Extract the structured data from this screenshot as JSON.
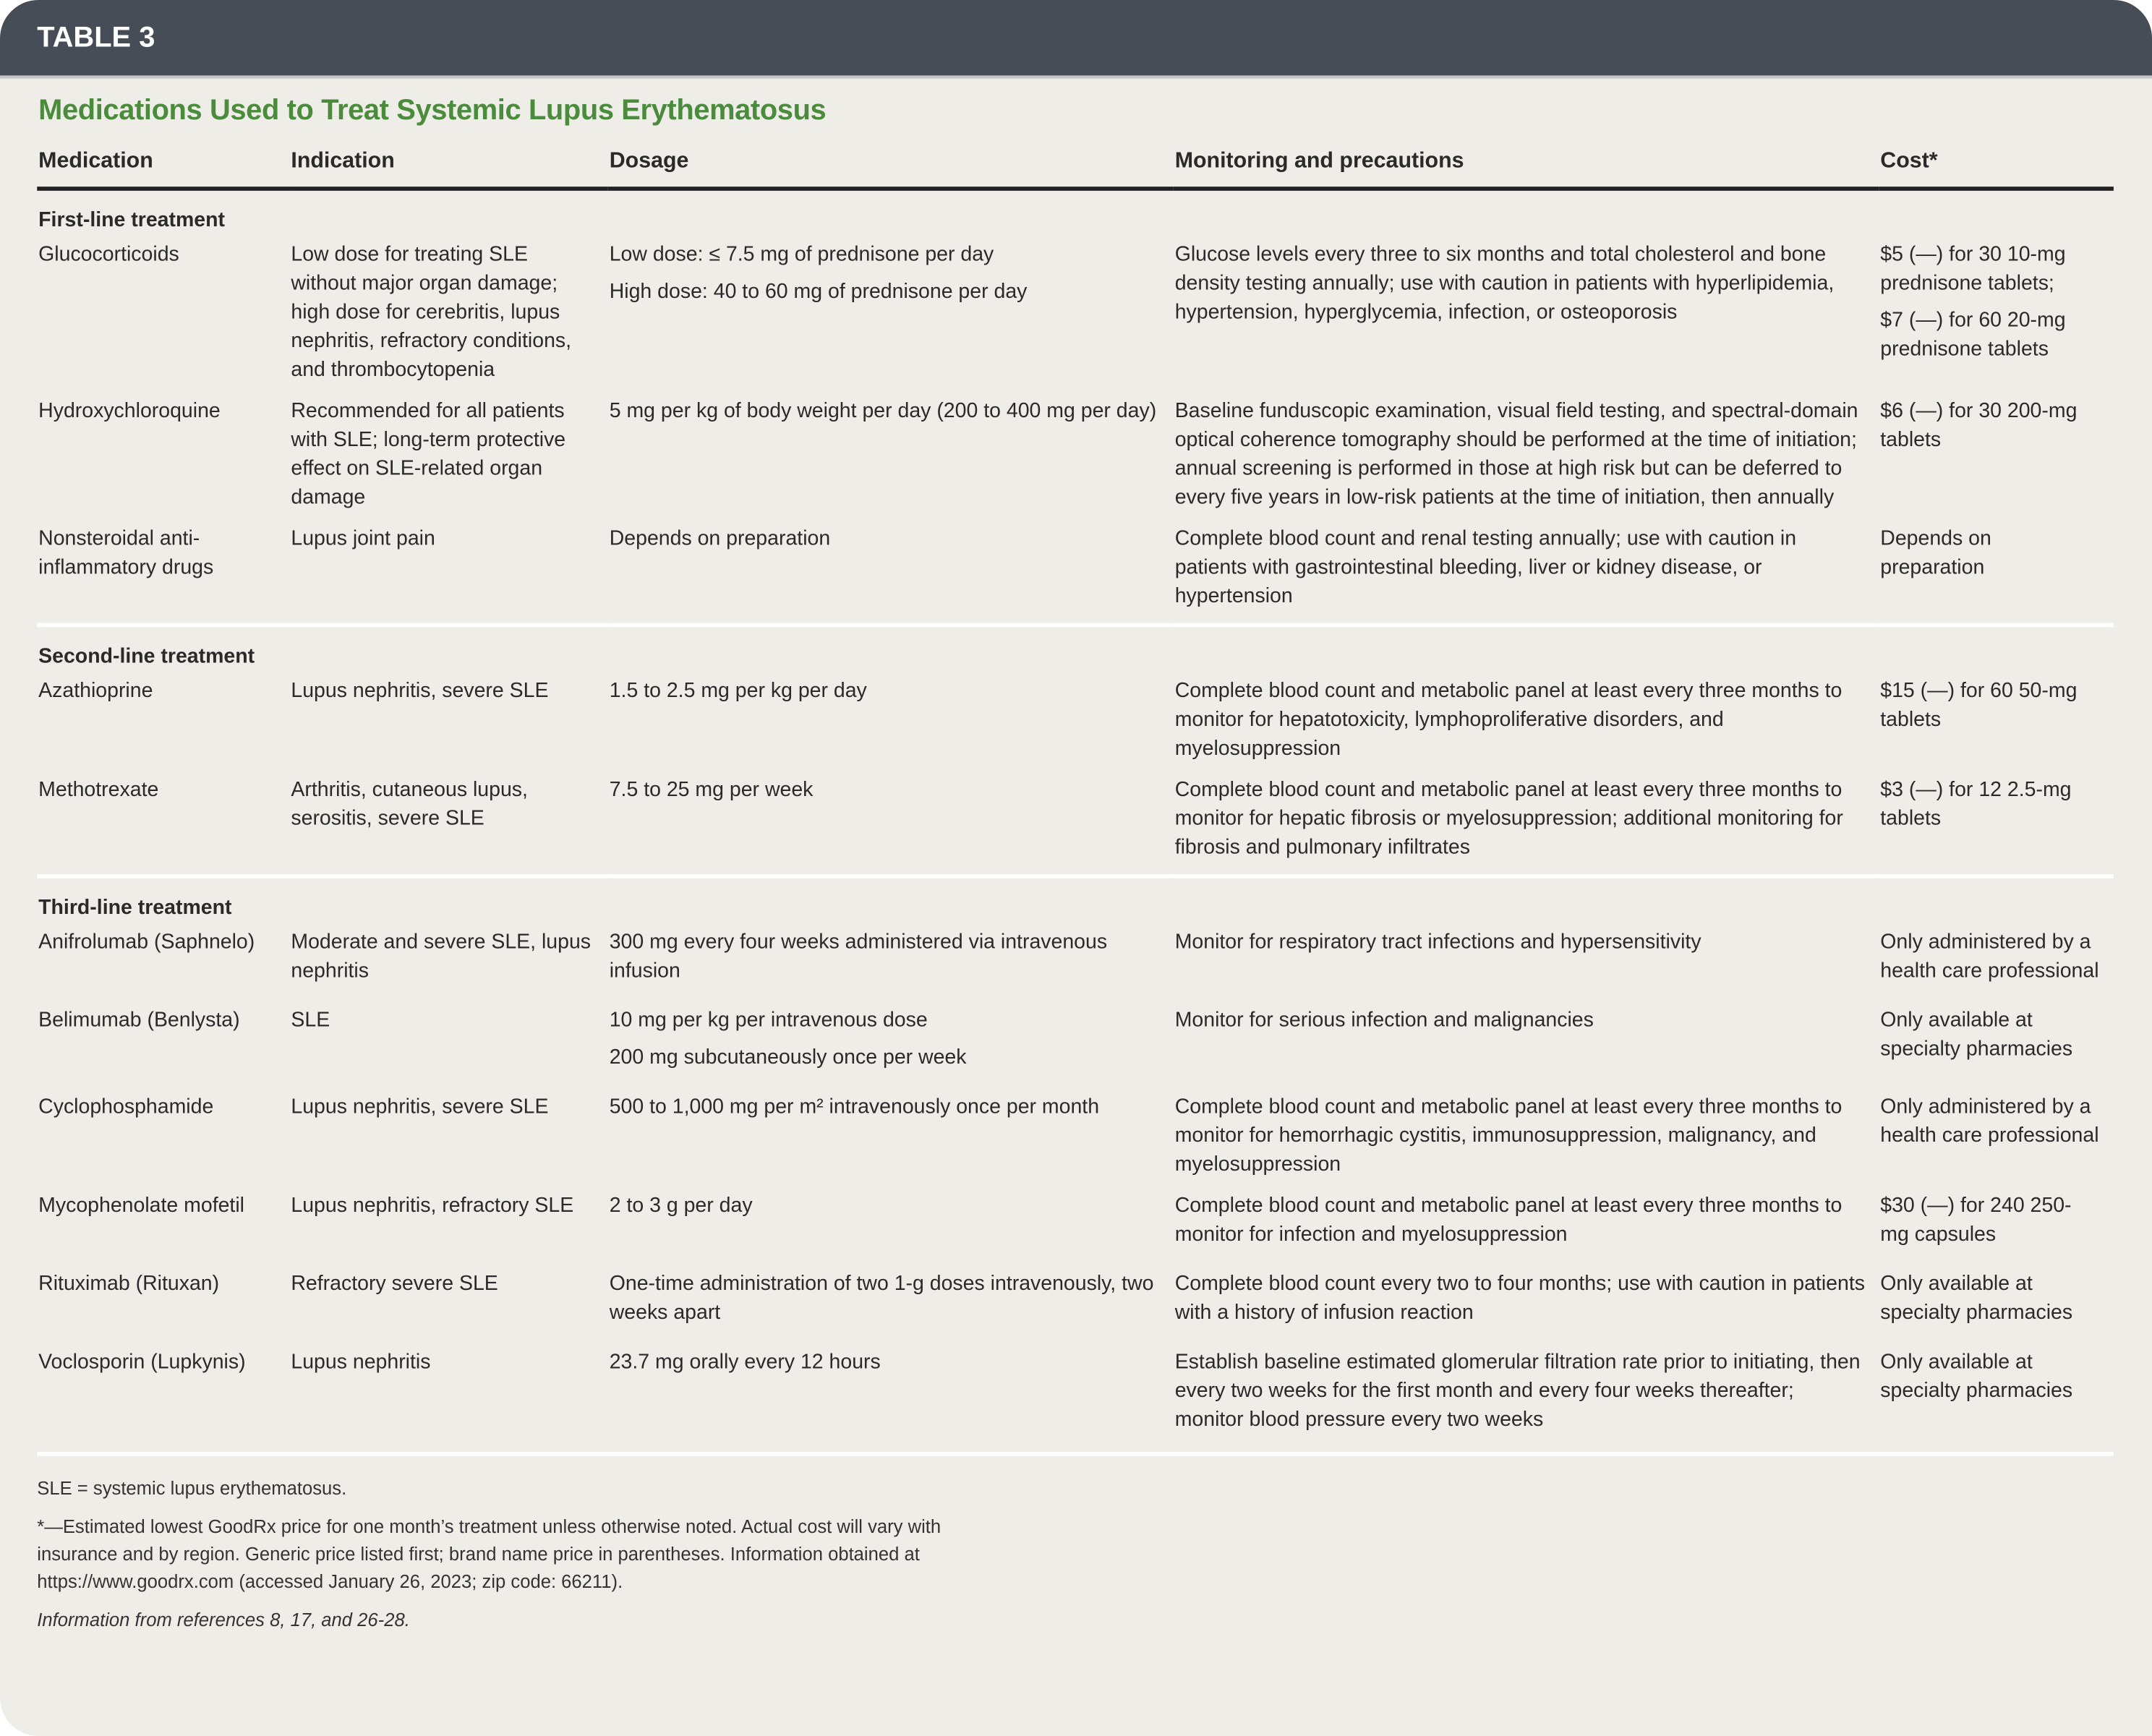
{
  "header": {
    "label": "TABLE 3",
    "title": "Medications Used to Treat Systemic Lupus Erythematosus"
  },
  "colors": {
    "band": "#474d57",
    "title": "#4a8c3c",
    "background": "#efede8"
  },
  "columns": [
    "Medication",
    "Indication",
    "Dosage",
    "Monitoring and precautions",
    "Cost*"
  ],
  "sections": [
    {
      "label": "First-line treatment",
      "rows": [
        {
          "medication": "Glucocorticoids",
          "indication": "Low dose for treating SLE without major organ damage; high dose for cerebritis, lupus nephritis, refractory conditions, and thrombocytopenia",
          "dosage": [
            "Low dose: ≤ 7.5 mg of prednisone per day",
            "High dose: 40 to 60 mg of prednisone per day"
          ],
          "monitoring": "Glucose levels every three to six months and total cholesterol and bone density testing annually; use with caution in patients with hyperlipidemia, hypertension, hyperglycemia, infection, or osteoporosis",
          "cost": [
            "$5 (—) for 30 10-mg prednisone tablets;",
            "$7 (—) for 60 20-mg prednisone tablets"
          ]
        },
        {
          "medication": "Hydroxychloroquine",
          "indication": "Recommended for all patients with SLE; long-term protective effect on SLE-related organ damage",
          "dosage": [
            "5 mg per kg of body weight per day (200 to 400 mg per day)"
          ],
          "monitoring": "Baseline funduscopic examination, visual field testing, and spectral-domain optical coherence tomography should be performed at the time of initiation; annual screening is performed in those at high risk but can be deferred to every five years in low-risk patients at the time of initiation, then annually",
          "cost": [
            "$6 (—) for 30 200-mg tablets"
          ]
        },
        {
          "medication": "Nonsteroidal anti-inflammatory drugs",
          "indication": "Lupus joint pain",
          "dosage": [
            "Depends on preparation"
          ],
          "monitoring": "Complete blood count and renal testing annually; use with caution in patients with gastrointestinal bleeding, liver or kidney disease, or hypertension",
          "cost": [
            "Depends on preparation"
          ]
        }
      ]
    },
    {
      "label": "Second-line treatment",
      "rows": [
        {
          "medication": "Azathioprine",
          "indication": "Lupus nephritis, severe SLE",
          "dosage": [
            "1.5 to 2.5 mg per kg per day"
          ],
          "monitoring": "Complete blood count and metabolic panel at least every three months to monitor for hepatotoxicity, lymphoproliferative disorders, and myelosuppression",
          "cost": [
            "$15 (—) for 60 50-mg tablets"
          ]
        },
        {
          "medication": "Methotrexate",
          "indication": "Arthritis, cutaneous lupus, serositis, severe SLE",
          "dosage": [
            "7.5 to 25 mg per week"
          ],
          "monitoring": "Complete blood count and metabolic panel at least every three months to monitor for hepatic fibrosis or myelosuppression; additional monitoring for fibrosis and pulmonary infiltrates",
          "cost": [
            "$3 (—) for 12 2.5-mg tablets"
          ]
        }
      ]
    },
    {
      "label": "Third-line treatment",
      "rows": [
        {
          "medication": "Anifrolumab (Saphnelo)",
          "indication": "Moderate and severe SLE, lupus nephritis",
          "dosage": [
            "300 mg every four weeks administered via intravenous infusion"
          ],
          "monitoring": "Monitor for respiratory tract infections and hypersensitivity",
          "cost": [
            "Only administered by a health care professional"
          ]
        },
        {
          "medication": "Belimumab (Benlysta)",
          "indication": "SLE",
          "dosage": [
            "10 mg per kg per intravenous dose",
            "200 mg subcutaneously once per week"
          ],
          "monitoring": "Monitor for serious infection and malignancies",
          "cost": [
            "Only available at specialty pharmacies"
          ]
        },
        {
          "medication": "Cyclophosphamide",
          "indication": "Lupus nephritis, severe SLE",
          "dosage": [
            "500 to 1,000 mg per m² intravenously once per month"
          ],
          "monitoring": "Complete blood count and metabolic panel at least every three months to monitor for hemorrhagic cystitis, immunosuppression, malignancy, and myelosuppression",
          "cost": [
            "Only administered by a health care professional"
          ]
        },
        {
          "medication": "Mycophenolate mofetil",
          "indication": "Lupus nephritis, refractory SLE",
          "dosage": [
            "2 to 3 g per day"
          ],
          "monitoring": "Complete blood count and metabolic panel at least every three months to monitor for infection and myelosuppression",
          "cost": [
            "$30 (—) for 240 250-mg capsules"
          ]
        },
        {
          "medication": "Rituximab (Rituxan)",
          "indication": "Refractory severe SLE",
          "dosage": [
            "One-time administration of two 1-g doses intravenously, two weeks apart"
          ],
          "monitoring": "Complete blood count every two to four months; use with caution in patients with a history of infusion reaction",
          "cost": [
            "Only available at specialty pharmacies"
          ]
        },
        {
          "medication": "Voclosporin (Lupkynis)",
          "indication": "Lupus nephritis",
          "dosage": [
            "23.7 mg orally every 12 hours"
          ],
          "monitoring": "Establish baseline estimated glomerular filtration rate prior to initiating, then every two weeks for the first month and every four weeks thereafter; monitor blood pressure every two weeks",
          "cost": [
            "Only available at specialty pharmacies"
          ]
        }
      ]
    }
  ],
  "footnotes": {
    "abbrev": "SLE = systemic lupus erythematosus.",
    "cost_note": "*—Estimated lowest GoodRx price for one month’s treatment unless otherwise noted. Actual cost will vary with insurance and by region. Generic price listed first; brand name price in parentheses. Information obtained at https://www.goodrx.com (accessed January 26, 2023; zip code: 66211).",
    "source": "Information from references 8, 17, and 26-28."
  }
}
